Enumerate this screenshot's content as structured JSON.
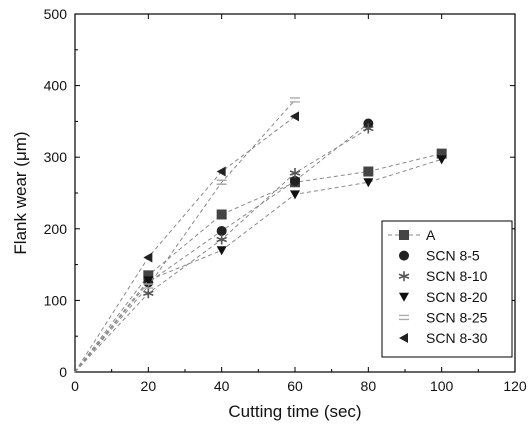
{
  "chart_data": {
    "type": "line",
    "title": "",
    "xlabel": "Cutting time (sec)",
    "ylabel": "Flank wear (μm)",
    "xlim": [
      0,
      120
    ],
    "ylim": [
      0,
      500
    ],
    "xticks": [
      0,
      20,
      40,
      60,
      80,
      100,
      120
    ],
    "yticks": [
      0,
      100,
      200,
      300,
      400,
      500
    ],
    "grid": false,
    "legend_position": "bottom-right",
    "series": [
      {
        "name": "A",
        "marker": "square",
        "color": "#444444",
        "x": [
          0,
          20,
          40,
          60,
          80,
          100
        ],
        "y": [
          0,
          135,
          220,
          265,
          280,
          305
        ]
      },
      {
        "name": "SCN 8-5",
        "marker": "circle",
        "color": "#222222",
        "x": [
          0,
          20,
          40,
          60,
          80
        ],
        "y": [
          0,
          125,
          197,
          267,
          347
        ]
      },
      {
        "name": "SCN 8-10",
        "marker": "star",
        "color": "#555555",
        "x": [
          0,
          20,
          40,
          60,
          80
        ],
        "y": [
          0,
          110,
          185,
          278,
          340
        ]
      },
      {
        "name": "SCN 8-20",
        "marker": "triangle-down",
        "color": "#111111",
        "x": [
          0,
          20,
          40,
          60,
          80,
          100
        ],
        "y": [
          0,
          128,
          170,
          248,
          265,
          297
        ]
      },
      {
        "name": "SCN 8-25",
        "marker": "dash",
        "color": "#aaaaaa",
        "x": [
          0,
          20,
          40,
          60
        ],
        "y": [
          0,
          120,
          265,
          380
        ]
      },
      {
        "name": "SCN 8-30",
        "marker": "triangle-left",
        "color": "#222222",
        "x": [
          0,
          20,
          40,
          60
        ],
        "y": [
          0,
          160,
          280,
          357
        ]
      }
    ]
  }
}
